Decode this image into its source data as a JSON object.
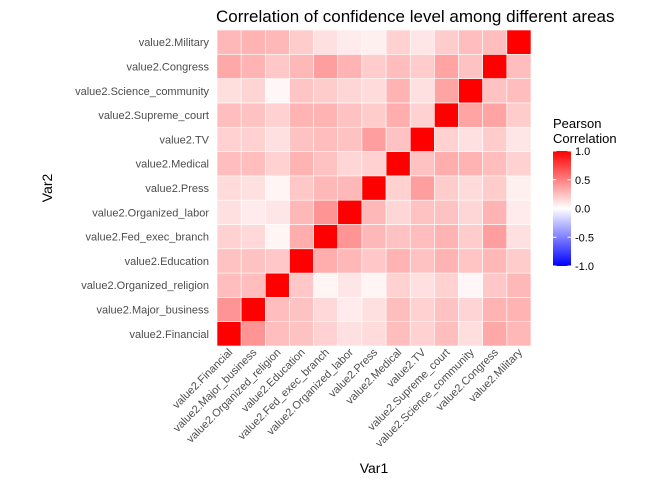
{
  "chart_data": {
    "type": "heatmap",
    "title": "Correlation of confidence level among different areas",
    "xlabel": "Var1",
    "ylabel": "Var2",
    "categories": [
      "value2.Financial",
      "value2.Major_business",
      "value2.Organized_religion",
      "value2.Education",
      "value2.Fed_exec_branch",
      "value2.Organized_labor",
      "value2.Press",
      "value2.Medical",
      "value2.TV",
      "value2.Supreme_court",
      "value2.Science_community",
      "value2.Congress",
      "value2.Military"
    ],
    "matrix": [
      [
        1.0,
        0.42,
        0.26,
        0.24,
        0.18,
        0.12,
        0.14,
        0.26,
        0.18,
        0.26,
        0.13,
        0.34,
        0.28
      ],
      [
        0.42,
        1.0,
        0.26,
        0.24,
        0.15,
        0.08,
        0.12,
        0.26,
        0.18,
        0.24,
        0.17,
        0.3,
        0.3
      ],
      [
        0.26,
        0.26,
        1.0,
        0.22,
        0.04,
        0.1,
        0.04,
        0.18,
        0.12,
        0.18,
        0.03,
        0.22,
        0.28
      ],
      [
        0.24,
        0.24,
        0.22,
        1.0,
        0.32,
        0.28,
        0.22,
        0.3,
        0.24,
        0.3,
        0.23,
        0.28,
        0.2
      ],
      [
        0.18,
        0.15,
        0.04,
        0.32,
        1.0,
        0.42,
        0.28,
        0.24,
        0.26,
        0.3,
        0.2,
        0.38,
        0.12
      ],
      [
        0.12,
        0.08,
        0.1,
        0.28,
        0.42,
        1.0,
        0.28,
        0.16,
        0.24,
        0.24,
        0.16,
        0.3,
        0.08
      ],
      [
        0.14,
        0.12,
        0.04,
        0.22,
        0.28,
        0.28,
        1.0,
        0.18,
        0.38,
        0.2,
        0.14,
        0.2,
        0.06
      ],
      [
        0.26,
        0.26,
        0.18,
        0.3,
        0.24,
        0.16,
        0.18,
        1.0,
        0.24,
        0.32,
        0.3,
        0.26,
        0.18
      ],
      [
        0.18,
        0.18,
        0.12,
        0.24,
        0.26,
        0.24,
        0.38,
        0.24,
        1.0,
        0.18,
        0.12,
        0.2,
        0.1
      ],
      [
        0.26,
        0.24,
        0.18,
        0.3,
        0.3,
        0.24,
        0.2,
        0.32,
        0.18,
        1.0,
        0.36,
        0.36,
        0.2
      ],
      [
        0.13,
        0.17,
        0.03,
        0.23,
        0.2,
        0.16,
        0.14,
        0.3,
        0.12,
        0.36,
        1.0,
        0.24,
        0.26
      ],
      [
        0.34,
        0.3,
        0.22,
        0.28,
        0.38,
        0.3,
        0.2,
        0.26,
        0.2,
        0.36,
        0.24,
        1.0,
        0.26
      ],
      [
        0.28,
        0.3,
        0.28,
        0.2,
        0.12,
        0.08,
        0.06,
        0.18,
        0.1,
        0.2,
        0.26,
        0.26,
        1.0
      ]
    ],
    "legend": {
      "title": "Pearson\nCorrelation",
      "range": [
        -1,
        1
      ],
      "ticks": [
        1.0,
        0.5,
        0.0,
        -0.5,
        -1.0
      ],
      "tick_labels": [
        "1.0",
        "0.5",
        "0.0",
        "-0.5",
        "-1.0"
      ],
      "placement": "right"
    },
    "colors": {
      "low": "#0000ff",
      "mid": "#ffffff",
      "high": "#ff0000",
      "cell_border": "#ffffff"
    },
    "grid": false
  }
}
